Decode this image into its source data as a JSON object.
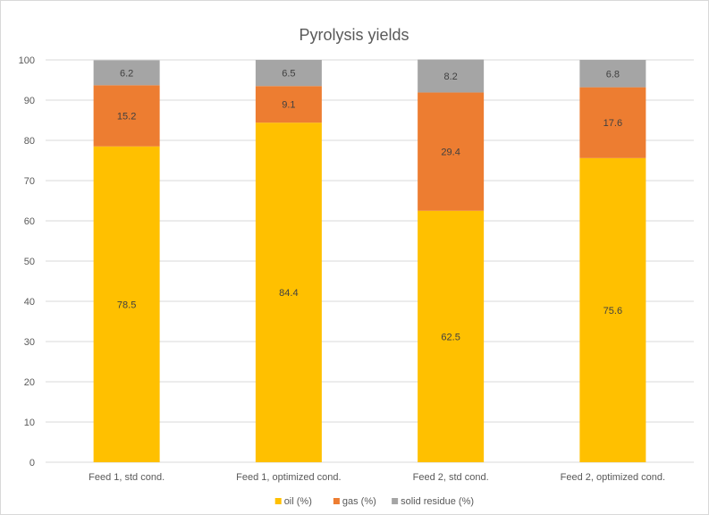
{
  "chart_data": {
    "type": "bar",
    "stacked": true,
    "title": "Pyrolysis yields",
    "xlabel": "",
    "ylabel": "",
    "ylim": [
      0,
      100
    ],
    "yticks": [
      0,
      10,
      20,
      30,
      40,
      50,
      60,
      70,
      80,
      90,
      100
    ],
    "grid": true,
    "legend_position": "bottom",
    "categories": [
      "Feed 1, std cond.",
      "Feed 1, optimized cond.",
      "Feed 2, std cond.",
      "Feed 2, optimized cond."
    ],
    "series": [
      {
        "name": "oil (%)",
        "color": "#FFC000",
        "values": [
          78.5,
          84.4,
          62.5,
          75.6
        ]
      },
      {
        "name": "gas (%)",
        "color": "#ED7D31",
        "values": [
          15.2,
          9.1,
          29.4,
          17.6
        ]
      },
      {
        "name": "solid residue (%)",
        "color": "#A5A5A5",
        "values": [
          6.2,
          6.5,
          8.2,
          6.8
        ]
      }
    ]
  }
}
